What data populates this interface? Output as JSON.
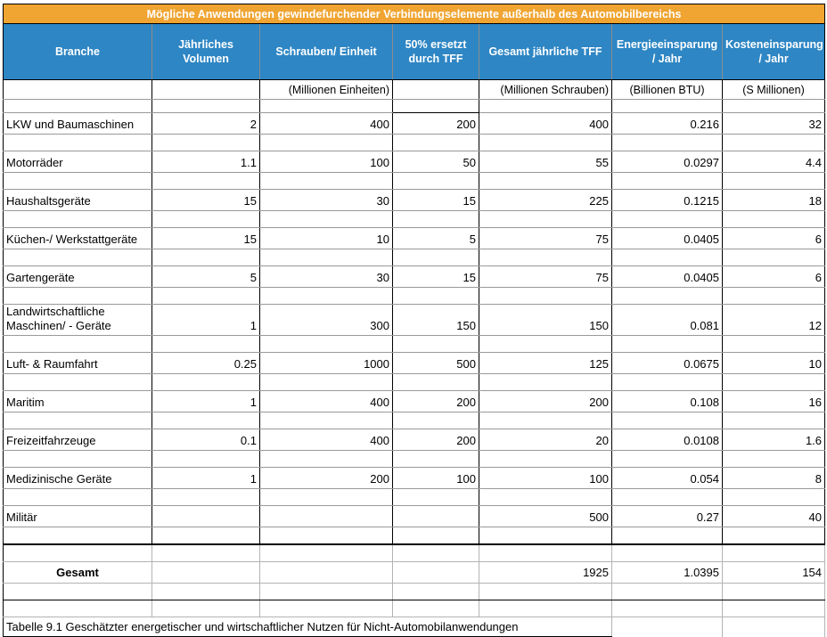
{
  "colors": {
    "title_bg": "#F0A431",
    "header_bg": "#2E86C4",
    "grid_dark": "#000000",
    "grid_gray": "#999999",
    "grid_light": "#b3b3b3"
  },
  "chart_data": {
    "type": "table",
    "title": "Mögliche Anwendungen gewindefurchender Verbindungselemente außerhalb des Automobilbereichs",
    "columns": [
      {
        "label": "Branche",
        "sub": ""
      },
      {
        "label": "Jährliches\nVolumen",
        "sub": ""
      },
      {
        "label": "Schrauben/ Einheit",
        "sub": "(Millionen Einheiten)"
      },
      {
        "label": "50% ersetzt\ndurch TFF",
        "sub": ""
      },
      {
        "label": "Gesamt jährliche TFF",
        "sub": "(Millionen Schrauben)"
      },
      {
        "label": "Energieeinsparung\n/ Jahr",
        "sub": "(Billionen BTU)"
      },
      {
        "label": "Kosteneinsparung\n/ Jahr",
        "sub": "(S Millionen)"
      }
    ],
    "rows": [
      {
        "branche": "LKW und Baumaschinen",
        "values": [
          "2",
          "400",
          "200",
          "400",
          "0.216",
          "32"
        ]
      },
      {
        "branche": "Motorräder",
        "values": [
          "1.1",
          "100",
          "50",
          "55",
          "0.0297",
          "4.4"
        ]
      },
      {
        "branche": "Haushaltsgeräte",
        "values": [
          "15",
          "30",
          "15",
          "225",
          "0.1215",
          "18"
        ]
      },
      {
        "branche": "Küchen-/ Werkstattgeräte",
        "values": [
          "15",
          "10",
          "5",
          "75",
          "0.0405",
          "6"
        ]
      },
      {
        "branche": "Gartengeräte",
        "values": [
          "5",
          "30",
          "15",
          "75",
          "0.0405",
          "6"
        ]
      },
      {
        "branche": "Landwirtschaftliche\nMaschinen/ - Geräte",
        "values": [
          "1",
          "300",
          "150",
          "150",
          "0.081",
          "12"
        ]
      },
      {
        "branche": "Luft- & Raumfahrt",
        "values": [
          "0.25",
          "1000",
          "500",
          "125",
          "0.0675",
          "10"
        ]
      },
      {
        "branche": "Maritim",
        "values": [
          "1",
          "400",
          "200",
          "200",
          "0.108",
          "16"
        ]
      },
      {
        "branche": "Freizeitfahrzeuge",
        "values": [
          "0.1",
          "400",
          "200",
          "20",
          "0.0108",
          "1.6"
        ]
      },
      {
        "branche": "Medizinische Geräte",
        "values": [
          "1",
          "200",
          "100",
          "100",
          "0.054",
          "8"
        ]
      },
      {
        "branche": "Militär",
        "values": [
          "",
          "",
          "",
          "500",
          "0.27",
          "40"
        ]
      }
    ],
    "total": {
      "label": "Gesamt",
      "values": [
        "",
        "",
        "",
        "1925",
        "1.0395",
        "154"
      ]
    },
    "caption": "Tabelle 9.1 Geschätzter energetischer und wirtschaftlicher Nutzen für Nicht-Automobilanwendungen"
  }
}
